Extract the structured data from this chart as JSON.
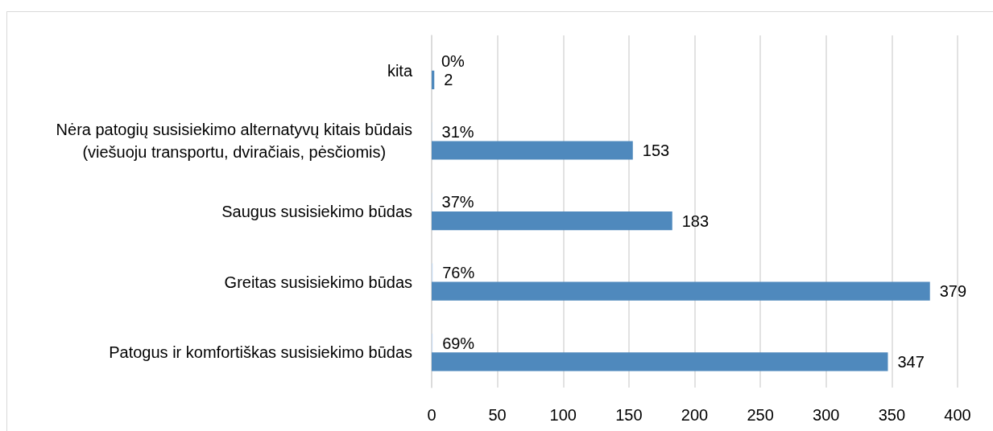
{
  "chart_data": {
    "type": "bar",
    "orientation": "horizontal",
    "categories": [
      "kita",
      "Nėra patogių susisiekimo alternatyvų kitais būdais\n(viešuoju transportu, dviračiais, pėsčiomis)",
      "Saugus susisiekimo būdas",
      "Greitas susisiekimo būdas",
      "Patogus ir komfortiškas susisiekimo būdas"
    ],
    "series": [
      {
        "color": "#c5d9ee",
        "values": [
          0,
          0.31,
          0.37,
          0.76,
          0.69
        ],
        "value_labels": [
          "0%",
          "31%",
          "37%",
          "76%",
          "69%"
        ]
      },
      {
        "color": "#4f89bd",
        "values": [
          2,
          153,
          183,
          379,
          347
        ],
        "value_labels": [
          "2",
          "153",
          "183",
          "379",
          "347"
        ]
      }
    ],
    "xlim": [
      0,
      400
    ],
    "xticks": [
      0,
      50,
      100,
      150,
      200,
      250,
      300,
      350,
      400
    ],
    "grid": "x"
  }
}
